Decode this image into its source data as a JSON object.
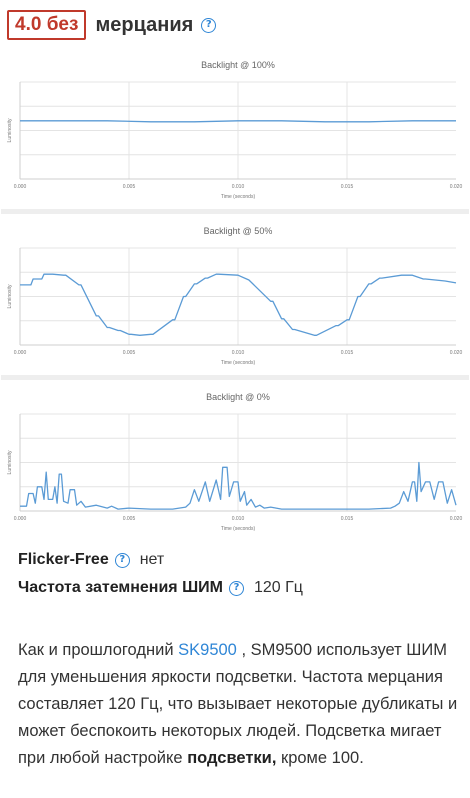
{
  "header": {
    "score": "4.0 без",
    "title": "мерцания",
    "help_icon": "question-circle-icon"
  },
  "charts": [
    {
      "title": "Backlight @ 100%",
      "ylabel": "Luminosity",
      "xlabel": "Time (seconds)",
      "ticks": [
        "0.000",
        "0.005",
        "0.010",
        "0.015",
        "0.020"
      ]
    },
    {
      "title": "Backlight @ 50%",
      "ylabel": "Luminosity",
      "xlabel": "Time (seconds)",
      "ticks": [
        "0.000",
        "0.005",
        "0.010",
        "0.015",
        "0.020"
      ]
    },
    {
      "title": "Backlight @ 0%",
      "ylabel": "Luminosity",
      "xlabel": "Time (seconds)",
      "ticks": [
        "0.000",
        "0.005",
        "0.010",
        "0.015",
        "0.020"
      ]
    }
  ],
  "chart_data": [
    {
      "type": "line",
      "title": "Backlight @ 100%",
      "xlabel": "Time (seconds)",
      "ylabel": "Luminosity",
      "xlim": [
        0,
        0.02
      ],
      "ylim": [
        0,
        1
      ],
      "grid": true,
      "x": [
        0,
        0.002,
        0.004,
        0.006,
        0.008,
        0.01,
        0.012,
        0.014,
        0.016,
        0.018,
        0.02
      ],
      "series": [
        {
          "values": [
            0.6,
            0.6,
            0.6,
            0.59,
            0.59,
            0.6,
            0.6,
            0.59,
            0.59,
            0.6,
            0.6
          ]
        }
      ]
    },
    {
      "type": "line",
      "title": "Backlight @ 50%",
      "xlabel": "Time (seconds)",
      "ylabel": "Luminosity",
      "xlim": [
        0,
        0.02
      ],
      "ylim": [
        0,
        1
      ],
      "grid": true,
      "x": [
        0,
        0.0005,
        0.0006,
        0.001,
        0.0011,
        0.0015,
        0.002,
        0.0021,
        0.0027,
        0.0028,
        0.0035,
        0.0036,
        0.004,
        0.0041,
        0.0045,
        0.0046,
        0.005,
        0.0051,
        0.0055,
        0.006,
        0.0061,
        0.007,
        0.0071,
        0.0075,
        0.0076,
        0.008,
        0.0081,
        0.0085,
        0.0086,
        0.009,
        0.0091,
        0.01,
        0.0105,
        0.0115,
        0.0116,
        0.012,
        0.0121,
        0.0125,
        0.0126,
        0.0135,
        0.0136,
        0.0145,
        0.0146,
        0.015,
        0.0151,
        0.0155,
        0.0156,
        0.016,
        0.0161,
        0.0165,
        0.0166,
        0.0175,
        0.0176,
        0.018,
        0.0185,
        0.0186,
        0.0195,
        0.02
      ],
      "series": [
        {
          "values": [
            0.62,
            0.62,
            0.68,
            0.68,
            0.73,
            0.73,
            0.72,
            0.72,
            0.62,
            0.62,
            0.3,
            0.3,
            0.18,
            0.18,
            0.15,
            0.15,
            0.11,
            0.11,
            0.1,
            0.11,
            0.11,
            0.26,
            0.26,
            0.5,
            0.5,
            0.63,
            0.63,
            0.69,
            0.69,
            0.73,
            0.73,
            0.72,
            0.67,
            0.45,
            0.45,
            0.27,
            0.27,
            0.16,
            0.16,
            0.1,
            0.1,
            0.2,
            0.2,
            0.26,
            0.26,
            0.5,
            0.5,
            0.63,
            0.63,
            0.69,
            0.69,
            0.72,
            0.72,
            0.72,
            0.68,
            0.68,
            0.66,
            0.64
          ]
        }
      ]
    },
    {
      "type": "line",
      "title": "Backlight @ 0%",
      "xlabel": "Time (seconds)",
      "ylabel": "Luminosity",
      "xlim": [
        0,
        0.02
      ],
      "ylim": [
        0,
        1
      ],
      "grid": true,
      "x": [
        0,
        0.0003,
        0.0004,
        0.0006,
        0.0007,
        0.0008,
        0.001,
        0.0011,
        0.0012,
        0.0013,
        0.0015,
        0.0016,
        0.0017,
        0.0018,
        0.0019,
        0.002,
        0.0022,
        0.0023,
        0.0025,
        0.0026,
        0.0028,
        0.003,
        0.0035,
        0.004,
        0.0042,
        0.0045,
        0.005,
        0.006,
        0.007,
        0.0076,
        0.0078,
        0.008,
        0.0082,
        0.0085,
        0.0087,
        0.009,
        0.0092,
        0.0093,
        0.0095,
        0.0096,
        0.0098,
        0.01,
        0.0101,
        0.0103,
        0.0104,
        0.0106,
        0.0108,
        0.011,
        0.0112,
        0.0115,
        0.012,
        0.013,
        0.014,
        0.015,
        0.016,
        0.017,
        0.0172,
        0.0174,
        0.0176,
        0.0178,
        0.018,
        0.0181,
        0.0182,
        0.0183,
        0.0184,
        0.0186,
        0.0188,
        0.019,
        0.0192,
        0.0194,
        0.0196,
        0.0198,
        0.02
      ],
      "series": [
        {
          "values": [
            0.05,
            0.05,
            0.18,
            0.18,
            0.08,
            0.25,
            0.25,
            0.12,
            0.4,
            0.12,
            0.12,
            0.25,
            0.08,
            0.38,
            0.38,
            0.1,
            0.08,
            0.22,
            0.22,
            0.06,
            0.1,
            0.04,
            0.06,
            0.03,
            0.05,
            0.02,
            0.03,
            0.02,
            0.02,
            0.04,
            0.08,
            0.22,
            0.1,
            0.3,
            0.1,
            0.32,
            0.12,
            0.45,
            0.45,
            0.15,
            0.3,
            0.3,
            0.1,
            0.2,
            0.06,
            0.12,
            0.04,
            0.06,
            0.03,
            0.04,
            0.02,
            0.02,
            0.02,
            0.02,
            0.02,
            0.03,
            0.05,
            0.08,
            0.2,
            0.1,
            0.3,
            0.3,
            0.1,
            0.5,
            0.2,
            0.3,
            0.3,
            0.12,
            0.3,
            0.3,
            0.08,
            0.22,
            0.06
          ]
        }
      ]
    }
  ],
  "specs": {
    "flicker_free": {
      "label": "Flicker-Free",
      "value": "нет"
    },
    "pwm": {
      "label": "Частота затемнения ШИМ",
      "value": "120 Гц"
    }
  },
  "paragraph": {
    "t1": "Как и прошлогодний ",
    "link": "SK9500",
    "t2": " , SM9500 использует ШИМ для уменьшения яркости подсветки. Частота мерцания составляет 120 Гц, что вызывает некоторые дубликаты и может беспокоить некоторых людей. Подсветка мигает при любой настройке ",
    "bold": "подсветки,",
    "t3": " кроме 100."
  },
  "colors": {
    "badge": "#c0392b",
    "link": "#2f86d6",
    "line": "#5b9bd5",
    "grid": "#e4e4e4"
  }
}
